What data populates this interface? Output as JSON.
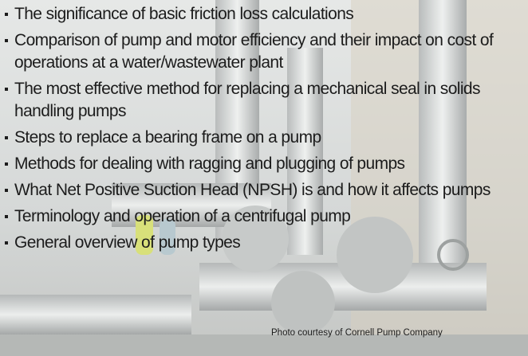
{
  "bullets": [
    "The significance of basic friction loss calculations",
    "Comparison of pump and motor efficiency and their impact on cost of operations at a water/wastewater plant",
    "The most effective method for replacing a mechanical seal in solids handling pumps",
    "Steps to replace a bearing frame on a pump",
    "Methods for dealing with ragging and plugging of pumps",
    "What Net Positive Suction Head (NPSH) is and how it affects pumps",
    "Terminology and operation of a centrifugal pump",
    "General overview of pump types"
  ],
  "caption": "Photo courtesy of Cornell Pump Company"
}
